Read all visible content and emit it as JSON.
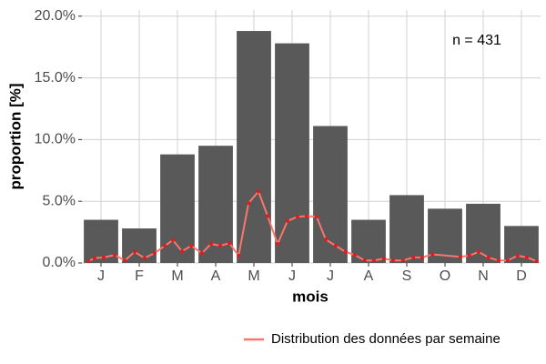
{
  "chart_data": {
    "type": "bar",
    "annotation": "n = 431",
    "x_label": "mois",
    "y_label": "proportion [%]",
    "categories": [
      "J",
      "F",
      "M",
      "A",
      "M",
      "J",
      "J",
      "A",
      "S",
      "O",
      "N",
      "D"
    ],
    "xlim": [
      0.5,
      12.5
    ],
    "ylim": [
      0,
      20.5
    ],
    "yticks": [
      {
        "value": 0,
        "label": "0.0%"
      },
      {
        "value": 5,
        "label": "5.0%"
      },
      {
        "value": 10,
        "label": "10.0%"
      },
      {
        "value": 15,
        "label": "15.0%"
      },
      {
        "value": 20,
        "label": "20.0%"
      }
    ],
    "grid": true,
    "legend": "bottom-right",
    "series": [
      {
        "type": "bar",
        "color": "#595959",
        "values": [
          3.5,
          2.8,
          8.8,
          9.5,
          18.8,
          17.8,
          11.1,
          3.5,
          5.5,
          4.4,
          4.8,
          3.0
        ]
      },
      {
        "type": "line",
        "name": "Distribution des données par semaine",
        "color": "#f8766d",
        "marker_color": "#e31a1c",
        "x": [
          0.67,
          0.83,
          1.07,
          1.36,
          1.62,
          1.88,
          2.14,
          2.4,
          2.67,
          2.88,
          3.12,
          3.36,
          3.64,
          3.88,
          4.12,
          4.36,
          4.6,
          4.86,
          5.12,
          5.36,
          5.62,
          5.88,
          6.14,
          6.38,
          6.64,
          6.88,
          7.14,
          7.4,
          7.64,
          7.9,
          8.14,
          8.4,
          8.64,
          8.9,
          9.17,
          9.4,
          9.67,
          10.4,
          10.64,
          10.88,
          11.14,
          11.4,
          11.64,
          11.9,
          12.14,
          12.4
        ],
        "values": [
          0.15,
          0.4,
          0.45,
          0.65,
          0.2,
          0.9,
          0.4,
          0.8,
          1.4,
          1.85,
          0.95,
          1.4,
          0.8,
          1.55,
          1.4,
          1.6,
          0.6,
          4.85,
          5.8,
          3.8,
          1.55,
          3.4,
          3.75,
          3.8,
          3.75,
          1.9,
          1.4,
          0.9,
          0.65,
          0.2,
          0.2,
          0.35,
          0.2,
          0.2,
          0.45,
          0.45,
          0.7,
          0.5,
          0.6,
          0.9,
          0.45,
          0.2,
          0.2,
          0.6,
          0.45,
          0.15
        ]
      }
    ]
  }
}
